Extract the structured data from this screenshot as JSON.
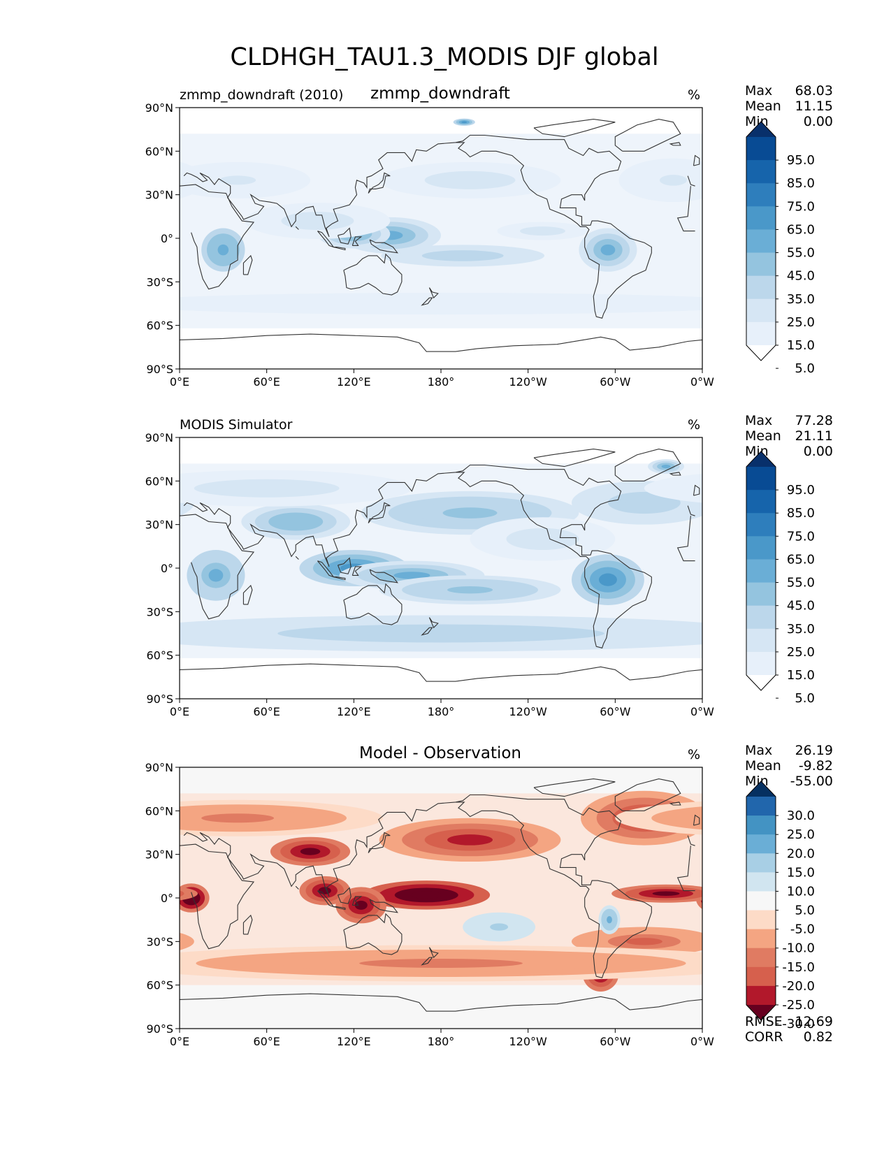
{
  "figure_title": "CLDHGH_TAU1.3_MODIS DJF global",
  "panels": [
    {
      "left_label": "zmmp_downdraft (2010)",
      "center_label": "zmmp_downdraft",
      "units": "%",
      "stats": [
        {
          "label": "Max",
          "value": "68.03"
        },
        {
          "label": "Mean",
          "value": "11.15"
        },
        {
          "label": "Min",
          "value": "0.00"
        }
      ],
      "colorbar": {
        "labels": [
          "95.0",
          "85.0",
          "75.0",
          "65.0",
          "55.0",
          "45.0",
          "35.0",
          "25.0",
          "15.0",
          "5.0"
        ],
        "colors": [
          "#08306b",
          "#084b94",
          "#1664ab",
          "#2e7ebc",
          "#4a98c9",
          "#6aaed6",
          "#94c4df",
          "#bcd7eb",
          "#d6e6f4",
          "#e7f0fa",
          "#ffffff"
        ]
      },
      "footer_stats": []
    },
    {
      "left_label": "MODIS Simulator",
      "center_label": "",
      "units": "%",
      "stats": [
        {
          "label": "Max",
          "value": "77.28"
        },
        {
          "label": "Mean",
          "value": "21.11"
        },
        {
          "label": "Min",
          "value": "0.00"
        }
      ],
      "colorbar": {
        "labels": [
          "95.0",
          "85.0",
          "75.0",
          "65.0",
          "55.0",
          "45.0",
          "35.0",
          "25.0",
          "15.0",
          "5.0"
        ],
        "colors": [
          "#08306b",
          "#084b94",
          "#1664ab",
          "#2e7ebc",
          "#4a98c9",
          "#6aaed6",
          "#94c4df",
          "#bcd7eb",
          "#d6e6f4",
          "#e7f0fa",
          "#ffffff"
        ]
      },
      "footer_stats": []
    },
    {
      "left_label": "",
      "center_label": "Model - Observation",
      "units": "%",
      "stats": [
        {
          "label": "Max",
          "value": "26.19"
        },
        {
          "label": "Mean",
          "value": "-9.82"
        },
        {
          "label": "Min",
          "value": "-55.00"
        }
      ],
      "colorbar": {
        "labels": [
          "30.0",
          "25.0",
          "20.0",
          "15.0",
          "10.0",
          "5.0",
          "-5.0",
          "-10.0",
          "-15.0",
          "-20.0",
          "-25.0",
          "-30.0"
        ],
        "colors": [
          "#053061",
          "#2166ac",
          "#4393c3",
          "#6aaed6",
          "#a8cfe5",
          "#d1e5f0",
          "#f7f7f7",
          "#fddbc7",
          "#f4a582",
          "#e07b62",
          "#d6604d",
          "#b2182b",
          "#67001f"
        ]
      },
      "footer_stats": [
        {
          "label": "RMSE",
          "value": "12.69"
        },
        {
          "label": "CORR",
          "value": "0.82"
        }
      ]
    }
  ],
  "axes": {
    "lat_ticks": [
      "90°N",
      "60°N",
      "30°N",
      "0°",
      "30°S",
      "60°S",
      "90°S"
    ],
    "lon_ticks": [
      "0°E",
      "60°E",
      "120°E",
      "180°",
      "120°W",
      "60°W",
      "0°W"
    ]
  },
  "chart_data": [
    {
      "type": "heatmap",
      "title": "zmmp_downdraft",
      "projection": "PlateCarree global, central longitude 180",
      "x_range": [
        0,
        360
      ],
      "y_range": [
        -90,
        90
      ],
      "colorbar_levels": [
        5,
        15,
        25,
        35,
        45,
        55,
        65,
        75,
        85,
        95
      ],
      "colormap": "blues (extend both)",
      "blobs": [
        {
          "lon": 30,
          "lat": -8,
          "w": 12,
          "h": 12,
          "v": 52
        },
        {
          "lon": 145,
          "lat": 2,
          "w": 28,
          "h": 10,
          "v": 48
        },
        {
          "lon": 120,
          "lat": 3,
          "w": 20,
          "h": 8,
          "v": 42
        },
        {
          "lon": 195,
          "lat": -12,
          "w": 45,
          "h": 6,
          "v": 30
        },
        {
          "lon": 295,
          "lat": -8,
          "w": 16,
          "h": 12,
          "v": 45
        },
        {
          "lon": 95,
          "lat": 12,
          "w": 40,
          "h": 10,
          "v": 22
        },
        {
          "lon": 200,
          "lat": 40,
          "w": 50,
          "h": 10,
          "v": 18
        },
        {
          "lon": 40,
          "lat": 40,
          "w": 40,
          "h": 10,
          "v": 16
        },
        {
          "lon": 180,
          "lat": -45,
          "w": 180,
          "h": 6,
          "v": 14
        },
        {
          "lon": 196,
          "lat": 80,
          "w": 6,
          "h": 2,
          "v": 55
        },
        {
          "lon": 340,
          "lat": 40,
          "w": 30,
          "h": 12,
          "v": 15
        },
        {
          "lon": 250,
          "lat": 5,
          "w": 25,
          "h": 5,
          "v": 20
        }
      ]
    },
    {
      "type": "heatmap",
      "title": "MODIS Simulator",
      "projection": "PlateCarree global, central longitude 180",
      "x_range": [
        0,
        360
      ],
      "y_range": [
        -90,
        90
      ],
      "colorbar_levels": [
        5,
        15,
        25,
        35,
        45,
        55,
        65,
        75,
        85,
        95
      ],
      "colormap": "blues (extend both)",
      "blobs": [
        {
          "lon": 25,
          "lat": -5,
          "w": 16,
          "h": 14,
          "v": 50
        },
        {
          "lon": 120,
          "lat": 0,
          "w": 30,
          "h": 10,
          "v": 55
        },
        {
          "lon": 160,
          "lat": -5,
          "w": 40,
          "h": 8,
          "v": 45
        },
        {
          "lon": 200,
          "lat": -15,
          "w": 50,
          "h": 8,
          "v": 38
        },
        {
          "lon": 295,
          "lat": -8,
          "w": 20,
          "h": 14,
          "v": 60
        },
        {
          "lon": 200,
          "lat": 38,
          "w": 60,
          "h": 12,
          "v": 40
        },
        {
          "lon": 80,
          "lat": 32,
          "w": 30,
          "h": 10,
          "v": 42
        },
        {
          "lon": 180,
          "lat": -45,
          "w": 180,
          "h": 10,
          "v": 30
        },
        {
          "lon": 320,
          "lat": 45,
          "w": 40,
          "h": 12,
          "v": 32
        },
        {
          "lon": 335,
          "lat": 70,
          "w": 10,
          "h": 4,
          "v": 45
        },
        {
          "lon": 60,
          "lat": 55,
          "w": 80,
          "h": 10,
          "v": 22
        },
        {
          "lon": 250,
          "lat": 20,
          "w": 40,
          "h": 12,
          "v": 20
        }
      ]
    },
    {
      "type": "heatmap",
      "title": "Model - Observation",
      "projection": "PlateCarree global, central longitude 180",
      "x_range": [
        0,
        360
      ],
      "y_range": [
        -90,
        90
      ],
      "colorbar_levels": [
        -30,
        -25,
        -20,
        -15,
        -10,
        -5,
        5,
        10,
        15,
        20,
        25,
        30
      ],
      "colormap": "red-blue diverging (extend both)",
      "blobs": [
        {
          "lon": 8,
          "lat": 0,
          "w": 10,
          "h": 8,
          "v": -38
        },
        {
          "lon": 170,
          "lat": 2,
          "w": 35,
          "h": 8,
          "v": -42
        },
        {
          "lon": 100,
          "lat": 5,
          "w": 14,
          "h": 8,
          "v": -35
        },
        {
          "lon": 125,
          "lat": -5,
          "w": 14,
          "h": 10,
          "v": -35
        },
        {
          "lon": 335,
          "lat": 3,
          "w": 30,
          "h": 5,
          "v": -35
        },
        {
          "lon": 200,
          "lat": 40,
          "w": 50,
          "h": 12,
          "v": -25
        },
        {
          "lon": 90,
          "lat": 32,
          "w": 22,
          "h": 8,
          "v": -30
        },
        {
          "lon": 320,
          "lat": 55,
          "w": 35,
          "h": 15,
          "v": -25
        },
        {
          "lon": 290,
          "lat": -52,
          "w": 10,
          "h": 10,
          "v": -30
        },
        {
          "lon": 320,
          "lat": -30,
          "w": 40,
          "h": 8,
          "v": -20
        },
        {
          "lon": 180,
          "lat": -45,
          "w": 180,
          "h": 10,
          "v": -15
        },
        {
          "lon": 220,
          "lat": -20,
          "w": 20,
          "h": 8,
          "v": 10
        },
        {
          "lon": 296,
          "lat": -15,
          "w": 6,
          "h": 8,
          "v": 15
        },
        {
          "lon": 40,
          "lat": 55,
          "w": 80,
          "h": 10,
          "v": -15
        }
      ]
    }
  ]
}
